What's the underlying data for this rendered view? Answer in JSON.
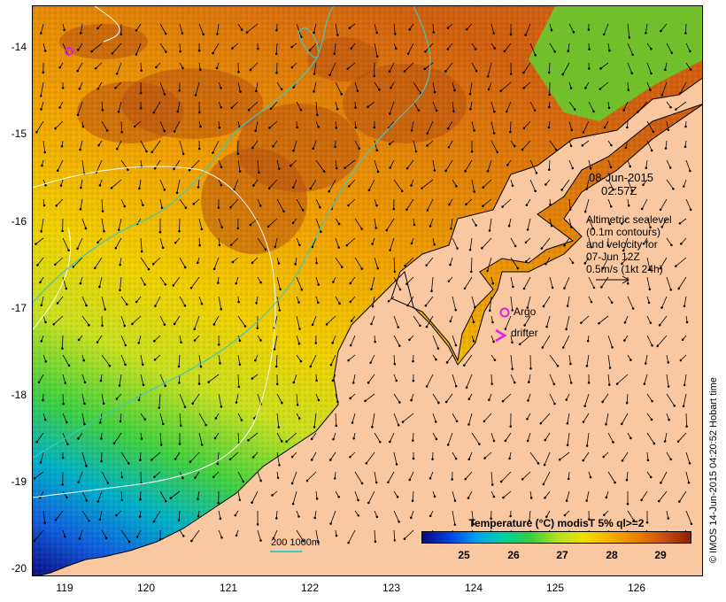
{
  "map": {
    "y_axis_labels": [
      "-14",
      "-15",
      "-16",
      "-17",
      "-18",
      "-19",
      "-20"
    ],
    "x_axis_labels": [
      "119",
      "120",
      "121",
      "122",
      "123",
      "124",
      "125",
      "126"
    ],
    "timestamp_date": "08-Jun-2015",
    "timestamp_time": "02:57Z",
    "altimetry_note": [
      "Altimetric sealevel",
      "(0.1m contours)",
      "and velocity for",
      "07-Jun 12Z",
      "0.5m/s (1kt 24h)"
    ],
    "argo_label": "Argo",
    "drifter_label": "drifter",
    "scale_label": "200  1000m",
    "credit": "© IMOS 14-Jun-2015 04:20:52 Hobart time",
    "colorbar_title": "Temperature (°C) modisT 5% ql>=2",
    "colorbar_ticks": [
      "25",
      "26",
      "27",
      "28",
      "29"
    ],
    "colors": {
      "land": "#f9c8a0",
      "contour_isobath": "#40c8c0",
      "contour_sealevel": "#ffffff",
      "argo_marker": "#e020e0",
      "drifter_marker": "#e020e0",
      "colormap": [
        "#0a0a80",
        "#0040e0",
        "#00a0f0",
        "#00d0a0",
        "#30d040",
        "#b0e020",
        "#f0e000",
        "#f8b000",
        "#e88000",
        "#c85010",
        "#8c2000"
      ]
    }
  }
}
